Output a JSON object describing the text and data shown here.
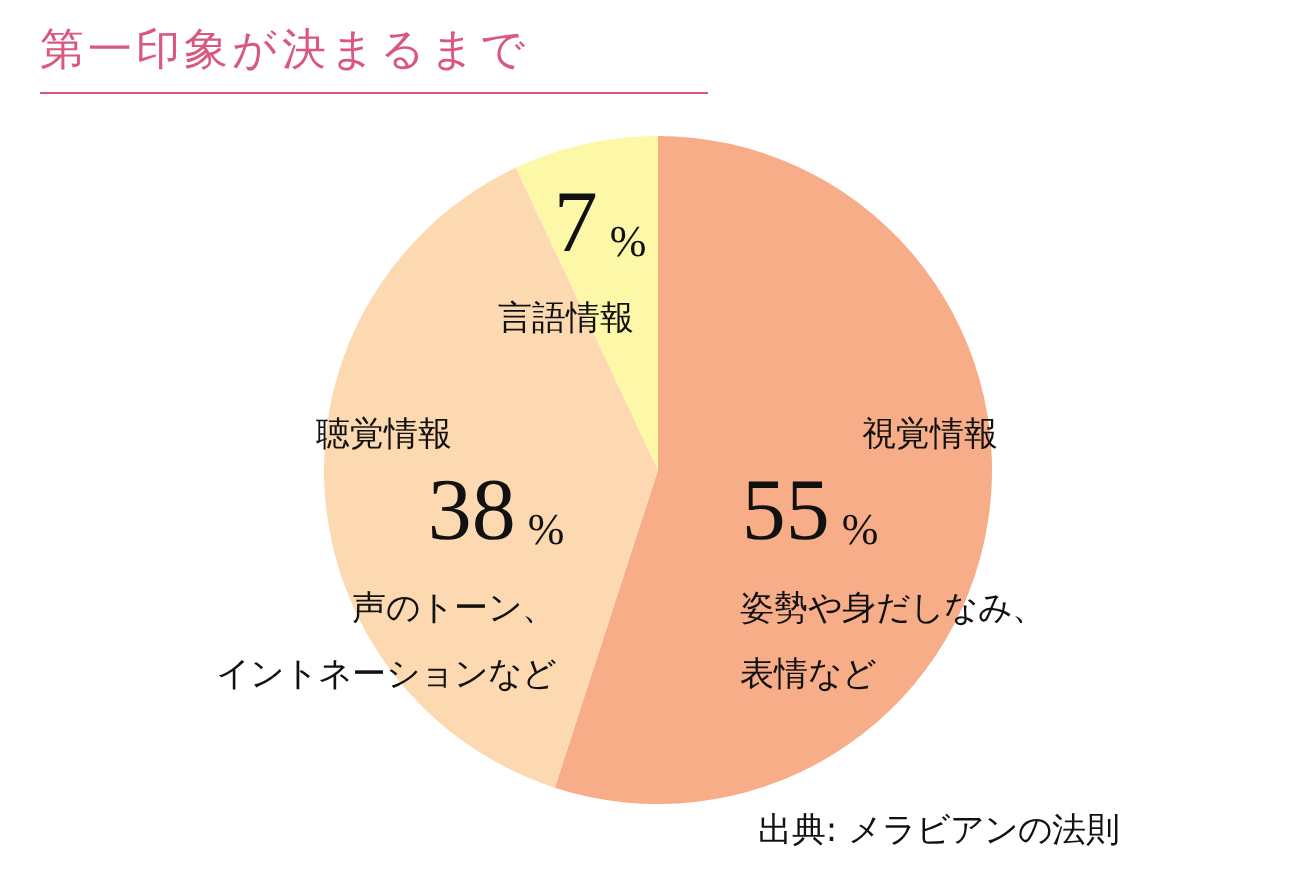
{
  "chart_data": {
    "type": "pie",
    "title": "第一印象が決まるまで",
    "categories": [
      "視覚情報",
      "聴覚情報",
      "言語情報"
    ],
    "values": [
      55,
      38,
      7
    ],
    "colors": [
      "#f6ad88",
      "#fcd9b0",
      "#fdf7a8"
    ],
    "value_labels": [
      "55%",
      "38%",
      "7%"
    ],
    "legend": false,
    "annotations": [
      "姿勢や身だしなみ、表情など",
      "声のトーン、イントネーションなど",
      "出典: メラビアンの法則"
    ]
  }
}
